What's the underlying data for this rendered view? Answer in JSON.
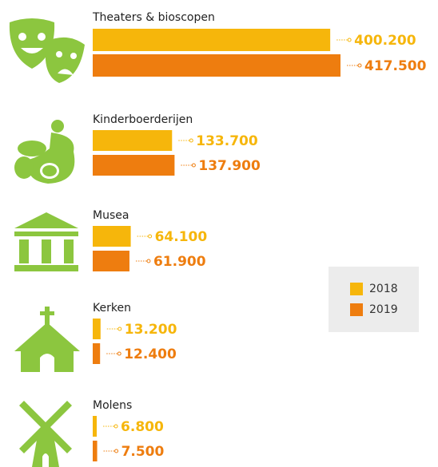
{
  "chart_data": {
    "type": "bar",
    "orientation": "horizontal",
    "categories": [
      "Theaters & bioscopen",
      "Kinderboerderijen",
      "Musea",
      "Kerken",
      "Molens"
    ],
    "series": [
      {
        "name": "2018",
        "color": "#f6b60b",
        "values": [
          400200,
          133700,
          64100,
          13200,
          6800
        ],
        "value_labels": [
          "400.200",
          "133.700",
          "64.100",
          "13.200",
          "6.800"
        ]
      },
      {
        "name": "2019",
        "color": "#ee7d0f",
        "values": [
          417500,
          137900,
          61900,
          12400,
          7500
        ],
        "value_labels": [
          "417.500",
          "137.900",
          "61.900",
          "12.400",
          "7.500"
        ]
      }
    ]
  }
}
